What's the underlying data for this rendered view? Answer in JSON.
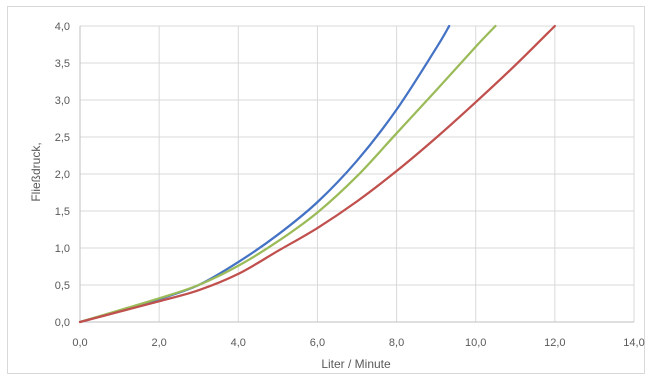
{
  "chart_data": {
    "type": "line",
    "title": "",
    "xlabel": "Liter / Minute",
    "ylabel": "Fließdruck,",
    "xlim": [
      0,
      14
    ],
    "ylim": [
      0,
      4
    ],
    "x_ticks": [
      "0,0",
      "2,0",
      "4,0",
      "6,0",
      "8,0",
      "10,0",
      "12,0",
      "14,0"
    ],
    "y_ticks": [
      "0,0",
      "0,5",
      "1,0",
      "1,5",
      "2,0",
      "2,5",
      "3,0",
      "3,5",
      "4,0"
    ],
    "grid": true,
    "legend": "none",
    "series": [
      {
        "color": "#4472c4",
        "points": [
          [
            0,
            0
          ],
          [
            1,
            0.15
          ],
          [
            2,
            0.31
          ],
          [
            3,
            0.5
          ],
          [
            4,
            0.81
          ],
          [
            5,
            1.18
          ],
          [
            6,
            1.62
          ],
          [
            7,
            2.18
          ],
          [
            8,
            2.87
          ],
          [
            9,
            3.7
          ],
          [
            9.33,
            4.0
          ]
        ]
      },
      {
        "color": "#9bbb59",
        "points": [
          [
            0,
            0
          ],
          [
            1,
            0.16
          ],
          [
            2,
            0.32
          ],
          [
            3,
            0.5
          ],
          [
            4,
            0.76
          ],
          [
            5,
            1.09
          ],
          [
            6,
            1.48
          ],
          [
            7,
            1.97
          ],
          [
            8,
            2.55
          ],
          [
            9,
            3.13
          ],
          [
            10,
            3.72
          ],
          [
            10.5,
            4.0
          ]
        ]
      },
      {
        "color": "#c0504d",
        "points": [
          [
            0,
            0
          ],
          [
            1,
            0.14
          ],
          [
            2,
            0.28
          ],
          [
            3,
            0.43
          ],
          [
            4,
            0.65
          ],
          [
            5,
            0.96
          ],
          [
            6,
            1.27
          ],
          [
            7,
            1.63
          ],
          [
            8,
            2.04
          ],
          [
            9,
            2.49
          ],
          [
            10,
            2.97
          ],
          [
            11,
            3.47
          ],
          [
            12,
            4.0
          ]
        ]
      }
    ]
  }
}
